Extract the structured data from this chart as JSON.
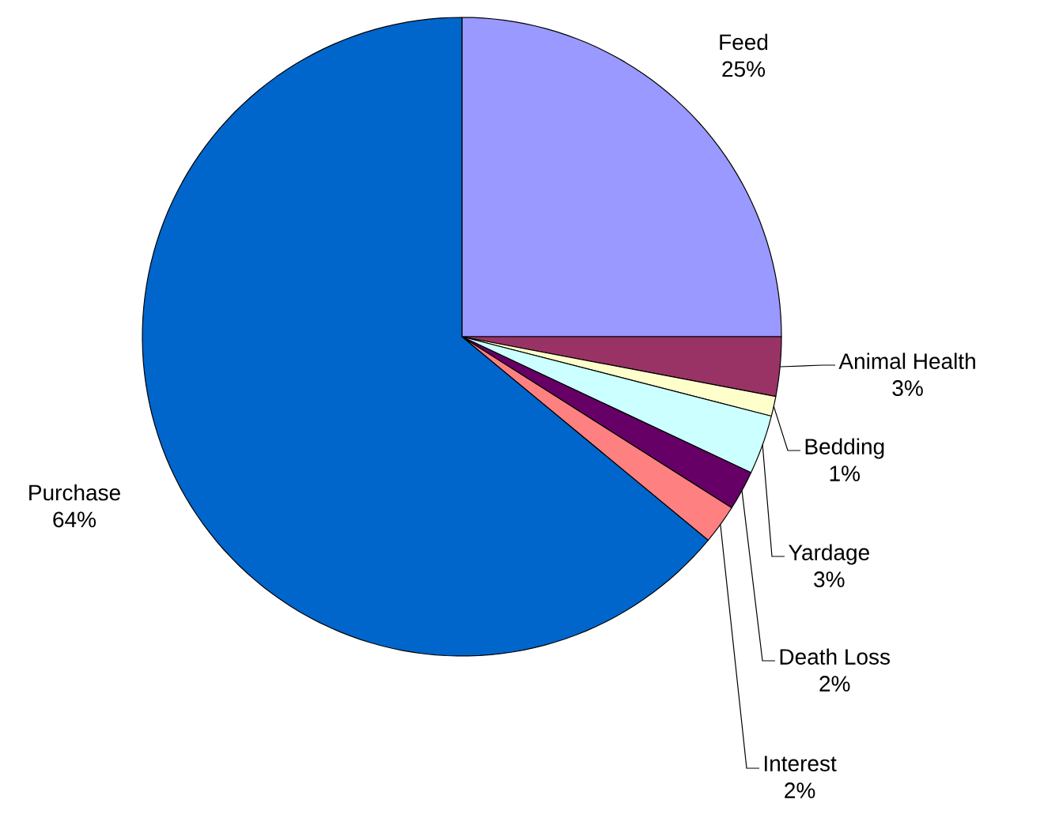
{
  "chart_data": {
    "type": "pie",
    "categories": [
      "Feed",
      "Animal Health",
      "Bedding",
      "Yardage",
      "Death Loss",
      "Interest",
      "Purchase"
    ],
    "values": [
      25,
      3,
      1,
      3,
      2,
      2,
      64
    ],
    "value_labels": [
      "25%",
      "3%",
      "1%",
      "3%",
      "2%",
      "2%",
      "64%"
    ],
    "colors": [
      "#9999ff",
      "#993366",
      "#ffffcc",
      "#ccffff",
      "#660066",
      "#ff8080",
      "#0066cc"
    ]
  }
}
